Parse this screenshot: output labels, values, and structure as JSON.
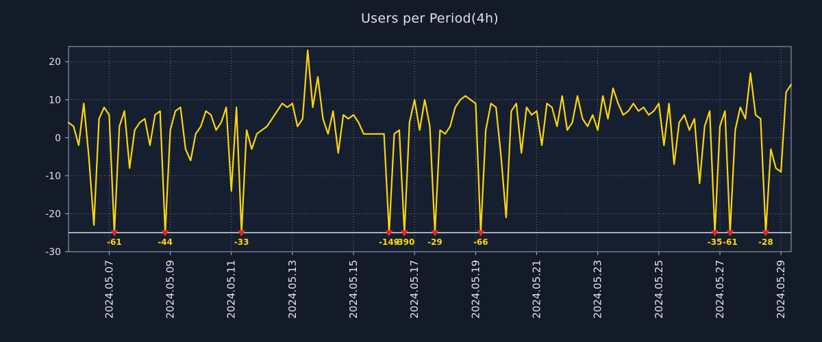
{
  "chart_data": {
    "type": "line",
    "title": "Users per Period(4h)",
    "xlabel": "",
    "ylabel": "",
    "period": "4h",
    "ylim": [
      -30,
      24
    ],
    "yticks": [
      -30,
      -20,
      -10,
      0,
      10,
      20
    ],
    "grid": true,
    "legend": false,
    "clip_value": -25,
    "x_ticks": [
      {
        "label": "2024.05.07",
        "i": 8
      },
      {
        "label": "2024.05.09",
        "i": 20
      },
      {
        "label": "2024.05.11",
        "i": 32
      },
      {
        "label": "2024.05.13",
        "i": 44
      },
      {
        "label": "2024.05.15",
        "i": 56
      },
      {
        "label": "2024.05.17",
        "i": 68
      },
      {
        "label": "2024.05.19",
        "i": 80
      },
      {
        "label": "2024.05.21",
        "i": 92
      },
      {
        "label": "2024.05.23",
        "i": 104
      },
      {
        "label": "2024.05.25",
        "i": 116
      },
      {
        "label": "2024.05.27",
        "i": 128
      },
      {
        "label": "2024.05.29",
        "i": 140
      }
    ],
    "values": [
      4,
      3,
      -2,
      9,
      -5,
      -23,
      5,
      8,
      6,
      -61,
      3,
      7,
      -8,
      2,
      4,
      5,
      -2,
      6,
      7,
      -44,
      2,
      7,
      8,
      -3,
      -6,
      1,
      3,
      7,
      6,
      2,
      4,
      8,
      -14,
      8,
      -33,
      2,
      -3,
      1,
      2,
      3,
      5,
      7,
      9,
      8,
      9,
      3,
      5,
      23,
      8,
      16,
      5,
      1,
      7,
      -4,
      6,
      5,
      6,
      4,
      1,
      1,
      1,
      1,
      1,
      -149,
      1,
      2,
      -390,
      4,
      10,
      2,
      10,
      3,
      -29,
      2,
      1,
      3,
      8,
      10,
      11,
      10,
      9,
      -66,
      2,
      9,
      8,
      -5,
      -21,
      7,
      9,
      -4,
      8,
      6,
      7,
      -2,
      9,
      8,
      3,
      11,
      2,
      4,
      11,
      5,
      3,
      6,
      2,
      11,
      5,
      13,
      9,
      6,
      7,
      9,
      7,
      8,
      6,
      7,
      9,
      -2,
      9,
      -7,
      4,
      6,
      2,
      5,
      -12,
      3,
      7,
      -35,
      3,
      7,
      -61,
      2,
      8,
      5,
      17,
      6,
      5,
      -28,
      -3,
      -8,
      -9,
      12,
      14
    ],
    "clip_marker_labels": [
      "-61",
      "-44",
      "-33",
      "-149",
      "-390",
      "-29",
      "-66",
      "-35",
      "-61",
      "-28"
    ],
    "colors": {
      "background": "#131a28",
      "plot_background": "#151f2f",
      "line": "#ffd60a",
      "marker": "#e8252d",
      "marker_label": "#ffd60a",
      "grid": "#8894a6",
      "frame": "#aeb8c4",
      "clip_line": "#eef2f6",
      "tick_text": "#dfe5ec",
      "title": "#dde3eb"
    }
  }
}
